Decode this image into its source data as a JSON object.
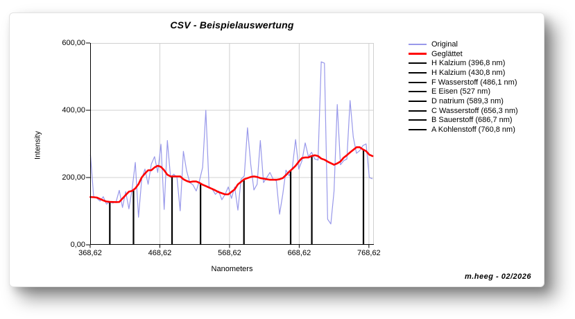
{
  "credit": "m.heeg - 02/2026",
  "colors": {
    "original": "#9898ea",
    "smoothed": "#ff0000",
    "marker": "#000000",
    "grid": "#d0d0d0",
    "axis": "#000000"
  },
  "chart_data": {
    "type": "line",
    "title": "CSV - Beispielauswertung",
    "xlabel": "Nanometers",
    "ylabel": "Intensity",
    "xlim": [
      368.62,
      775.72
    ],
    "ylim": [
      0,
      600
    ],
    "grid": true,
    "legend_position": "right-outside",
    "x_ticks": [
      {
        "value": 368.62,
        "label": "368,62"
      },
      {
        "value": 468.62,
        "label": "468,62"
      },
      {
        "value": 568.62,
        "label": "568,62"
      },
      {
        "value": 668.62,
        "label": "668,62"
      },
      {
        "value": 768.62,
        "label": "768,62"
      }
    ],
    "y_ticks": [
      {
        "value": 600,
        "label": "600,00"
      },
      {
        "value": 400,
        "label": "400,00"
      },
      {
        "value": 200,
        "label": "200,00"
      },
      {
        "value": 0,
        "label": "0,00"
      }
    ],
    "series": [
      {
        "name": "Original",
        "color": "#9898ea",
        "x": [
          369.0,
          373.6,
          378.2,
          382.8,
          387.4,
          392.0,
          396.6,
          401.2,
          405.8,
          410.4,
          415.0,
          419.6,
          424.2,
          428.8,
          433.4,
          438.0,
          442.6,
          447.2,
          451.8,
          456.4,
          461.0,
          465.6,
          470.2,
          474.8,
          479.4,
          484.0,
          488.6,
          493.2,
          497.8,
          502.4,
          507.0,
          511.6,
          516.2,
          520.8,
          525.4,
          530.0,
          534.6,
          539.2,
          543.8,
          548.4,
          553.0,
          557.6,
          562.2,
          566.8,
          571.4,
          576.0,
          580.6,
          585.2,
          589.8,
          594.4,
          599.0,
          603.6,
          608.2,
          612.8,
          617.4,
          622.0,
          626.6,
          631.2,
          635.8,
          640.4,
          645.0,
          649.6,
          654.2,
          658.8,
          663.4,
          668.0,
          672.6,
          677.2,
          681.8,
          686.4,
          691.0,
          695.6,
          700.2,
          704.8,
          709.4,
          714.0,
          718.6,
          723.2,
          727.8,
          732.4,
          737.0,
          741.6,
          746.2,
          750.8,
          755.4,
          760.0,
          764.6,
          769.2,
          773.8
        ],
        "y": [
          268,
          144,
          138,
          130,
          143,
          121,
          127,
          124,
          128,
          162,
          111,
          158,
          107,
          165,
          245,
          82,
          196,
          225,
          180,
          240,
          262,
          215,
          299,
          105,
          310,
          200,
          210,
          200,
          101,
          278,
          220,
          185,
          178,
          160,
          190,
          230,
          400,
          173,
          165,
          150,
          160,
          134,
          150,
          172,
          138,
          172,
          103,
          195,
          205,
          348,
          240,
          163,
          180,
          310,
          185,
          200,
          215,
          195,
          190,
          91,
          150,
          222,
          205,
          230,
          313,
          225,
          250,
          303,
          262,
          275,
          255,
          252,
          544,
          540,
          76,
          62,
          160,
          417,
          238,
          250,
          255,
          429,
          320,
          272,
          280,
          295,
          300,
          200,
          196
        ]
      },
      {
        "name": "Geglättet",
        "color": "#ff0000",
        "derived_from": "Original",
        "smoothing": "running median (window 7) followed by running mean (window 3)"
      }
    ],
    "markers": [
      {
        "label": "H Kalzium (396,8 nm)",
        "element": "H Kalzium",
        "nm": 396.8
      },
      {
        "label": "H Kalzium (430,8 nm)",
        "element": "H Kalzium",
        "nm": 430.8
      },
      {
        "label": "F Wasserstoff (486,1 nm)",
        "element": "F Wasserstoff",
        "nm": 486.1
      },
      {
        "label": "E Eisen (527 nm)",
        "element": "E Eisen",
        "nm": 527
      },
      {
        "label": "D natrium (589,3 nm)",
        "element": "D natrium",
        "nm": 589.3
      },
      {
        "label": "C Wasserstoff (656,3 nm)",
        "element": "C Wasserstoff",
        "nm": 656.3
      },
      {
        "label": "B Sauerstoff (686,7 nm)",
        "element": "B Sauerstoff",
        "nm": 686.7
      },
      {
        "label": "A Kohlenstoff (760,8 nm)",
        "element": "A Kohlenstoff",
        "nm": 760.8
      }
    ],
    "legend": [
      {
        "label": "Original",
        "color": "#9898ea",
        "weight": 2
      },
      {
        "label": "Geglättet",
        "color": "#ff0000",
        "weight": 3
      },
      {
        "label": "H Kalzium (396,8 nm)",
        "color": "#000000",
        "weight": 2
      },
      {
        "label": "H Kalzium (430,8 nm)",
        "color": "#000000",
        "weight": 2
      },
      {
        "label": "F Wasserstoff (486,1 nm)",
        "color": "#000000",
        "weight": 2
      },
      {
        "label": "E Eisen (527 nm)",
        "color": "#000000",
        "weight": 2
      },
      {
        "label": "D natrium (589,3 nm)",
        "color": "#000000",
        "weight": 2
      },
      {
        "label": "C Wasserstoff (656,3 nm)",
        "color": "#000000",
        "weight": 2
      },
      {
        "label": "B Sauerstoff (686,7 nm)",
        "color": "#000000",
        "weight": 2
      },
      {
        "label": "A Kohlenstoff (760,8 nm)",
        "color": "#000000",
        "weight": 2
      }
    ]
  }
}
